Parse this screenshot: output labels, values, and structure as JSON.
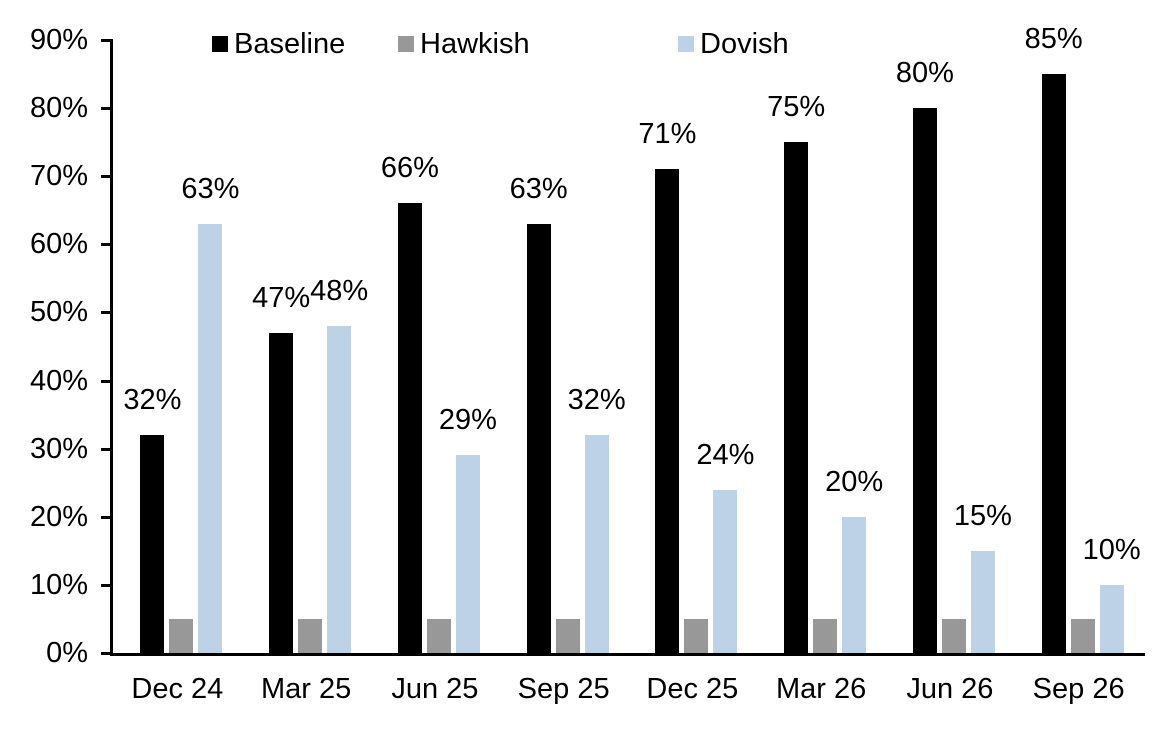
{
  "chart_data": {
    "type": "bar",
    "title": "",
    "xlabel": "",
    "ylabel": "",
    "categories": [
      "Dec 24",
      "Mar 25",
      "Jun 25",
      "Sep 25",
      "Dec 25",
      "Mar 26",
      "Jun 26",
      "Sep 26"
    ],
    "series": [
      {
        "name": "Baseline",
        "color": "#000000",
        "values": [
          32,
          47,
          66,
          63,
          71,
          75,
          80,
          85
        ],
        "data_labels": [
          "32%",
          "47%",
          "66%",
          "63%",
          "71%",
          "75%",
          "80%",
          "85%"
        ]
      },
      {
        "name": "Hawkish",
        "color": "#989898",
        "values": [
          5,
          5,
          5,
          5,
          5,
          5,
          5,
          5
        ],
        "data_labels": []
      },
      {
        "name": "Dovish",
        "color": "#bdd1e7",
        "values": [
          63,
          48,
          29,
          32,
          24,
          20,
          15,
          10
        ],
        "data_labels": [
          "63%",
          "48%",
          "29%",
          "32%",
          "24%",
          "20%",
          "15%",
          "10%"
        ]
      }
    ],
    "ylim": [
      0,
      90
    ],
    "yticks": [
      "0%",
      "10%",
      "20%",
      "30%",
      "40%",
      "50%",
      "60%",
      "70%",
      "80%",
      "90%"
    ],
    "grid": false,
    "legend_position": "top",
    "axis_color": "#000000",
    "background_color": "#ffffff"
  }
}
